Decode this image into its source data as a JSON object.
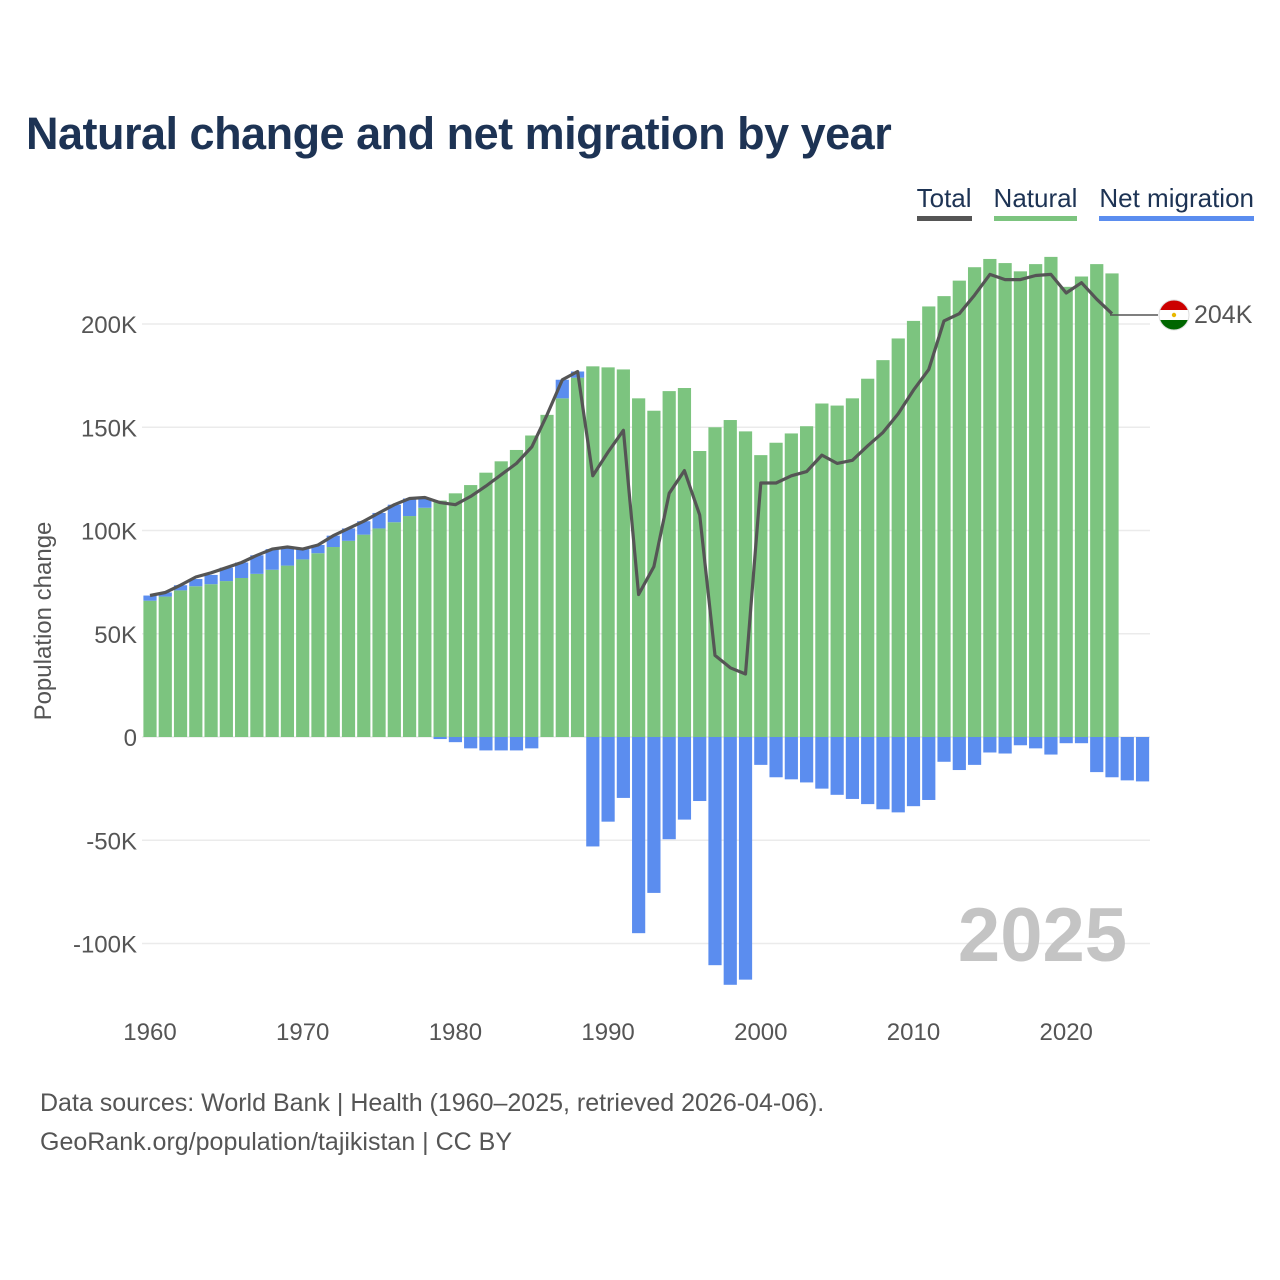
{
  "header": {
    "title": "Natural change and net migration by year"
  },
  "legend": [
    {
      "label": "Total",
      "color": "#555555"
    },
    {
      "label": "Natural",
      "color": "#7cc47f"
    },
    {
      "label": "Net migration",
      "color": "#5b8def"
    }
  ],
  "footer": {
    "source": "Data sources: World Bank | Health (1960–2025, retrieved 2026-04-06).",
    "link": "GeoRank.org/population/tajikistan | CC BY"
  },
  "flag": {
    "country": "Tajikistan",
    "colors": [
      "#cc0000",
      "#ffffff",
      "#006600"
    ]
  },
  "chart_data": {
    "type": "bar",
    "title": "Natural change and net migration by year",
    "xlabel": "",
    "ylabel": "Population change",
    "ylim": [
      -130000,
      260000
    ],
    "y_ticks": [
      -100000,
      -50000,
      0,
      50000,
      100000,
      150000,
      200000
    ],
    "y_tick_labels": [
      "-100K",
      "-50K",
      "0",
      "50K",
      "100K",
      "150K",
      "200K"
    ],
    "x_ticks": [
      1960,
      1970,
      1980,
      1990,
      2000,
      2010,
      2020
    ],
    "x_tick_labels": [
      "1960",
      "1970",
      "1980",
      "1990",
      "2000",
      "2010",
      "2020"
    ],
    "year_label": "2025",
    "end_label": "204K",
    "stacked": true,
    "years": [
      1960,
      1961,
      1962,
      1963,
      1964,
      1965,
      1966,
      1967,
      1968,
      1969,
      1970,
      1971,
      1972,
      1973,
      1974,
      1975,
      1976,
      1977,
      1978,
      1979,
      1980,
      1981,
      1982,
      1983,
      1984,
      1985,
      1986,
      1987,
      1988,
      1989,
      1990,
      1991,
      1992,
      1993,
      1994,
      1995,
      1996,
      1997,
      1998,
      1999,
      2000,
      2001,
      2002,
      2003,
      2004,
      2005,
      2006,
      2007,
      2008,
      2009,
      2010,
      2011,
      2012,
      2013,
      2014,
      2015,
      2016,
      2017,
      2018,
      2019,
      2020,
      2021,
      2022,
      2023,
      2024,
      2025
    ],
    "series": [
      {
        "name": "Natural",
        "values": [
          66000,
          68000,
          71000,
          73000,
          74000,
          75500,
          77000,
          79000,
          81000,
          83000,
          86000,
          89000,
          92000,
          95000,
          98000,
          101000,
          104000,
          107000,
          111000,
          114500,
          118000,
          122000,
          128000,
          133500,
          139000,
          146000,
          156000,
          164000,
          174000,
          179500,
          179000,
          178000,
          164000,
          158000,
          167500,
          169000,
          138500,
          150000,
          153500,
          148000,
          136500,
          142500,
          147000,
          150500,
          161500,
          160500,
          164000,
          173500,
          182500,
          193000,
          201500,
          208500,
          213500,
          221000,
          227500,
          231500,
          229500,
          225500,
          229000,
          232500,
          218000,
          223000,
          229000,
          224500,
          null,
          null
        ]
      },
      {
        "name": "Net migration",
        "values": [
          2500,
          2000,
          2500,
          3500,
          4500,
          6500,
          7500,
          9000,
          10000,
          9000,
          5000,
          4000,
          5500,
          6000,
          6500,
          7500,
          8500,
          8500,
          4500,
          -1000,
          -2500,
          -5500,
          -6500,
          -6500,
          -6500,
          -5500,
          0,
          9000,
          3000,
          -53000,
          -41000,
          -29500,
          -95000,
          -75500,
          -49500,
          -40000,
          -31000,
          -110500,
          -120000,
          -117500,
          -13500,
          -19500,
          -20500,
          -22000,
          -25000,
          -28000,
          -30000,
          -32500,
          -35000,
          -36500,
          -33500,
          -30500,
          -12000,
          -16000,
          -13500,
          -7500,
          -8000,
          -4000,
          -5500,
          -8500,
          -3000,
          -3000,
          -17000,
          -19500,
          -21000,
          -21500
        ]
      },
      {
        "name": "Total",
        "values": [
          68500,
          70000,
          73500,
          77500,
          79500,
          82000,
          84500,
          88000,
          91000,
          92000,
          91000,
          93000,
          97500,
          101000,
          104500,
          108500,
          112500,
          115500,
          116000,
          113500,
          112500,
          116500,
          121500,
          127000,
          132500,
          140500,
          156000,
          173000,
          177000,
          126500,
          138000,
          148500,
          69000,
          82500,
          118000,
          129000,
          107500,
          39500,
          33500,
          30500,
          123000,
          123000,
          126500,
          128500,
          136500,
          132500,
          134000,
          141000,
          147500,
          156500,
          168000,
          178000,
          201500,
          205000,
          214000,
          224000,
          221500,
          221500,
          223500,
          224000,
          215000,
          220000,
          212000,
          205000,
          null,
          null
        ]
      }
    ]
  }
}
